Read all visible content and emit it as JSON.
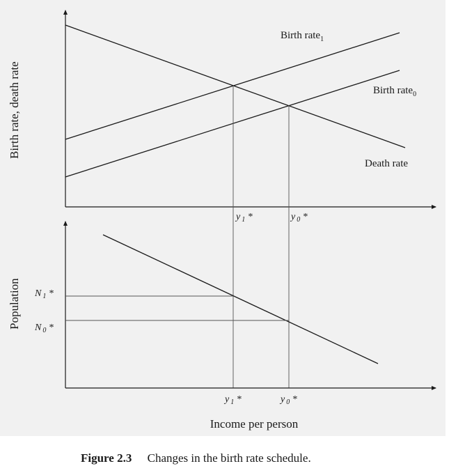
{
  "top_panel": {
    "ylabel": "Birth rate, death rate",
    "curves": {
      "birth_rate_1": {
        "label": "Birth rate",
        "sub": "1"
      },
      "birth_rate_0": {
        "label": "Birth rate",
        "sub": "0"
      },
      "death_rate": {
        "label": "Death rate"
      }
    },
    "ticks": {
      "y1": {
        "main": "y",
        "sub": "1",
        "star": " *"
      },
      "y0": {
        "main": "y",
        "sub": "0",
        "star": " *"
      }
    }
  },
  "bottom_panel": {
    "ylabel": "Population",
    "xlabel": "Income per person",
    "yticks": {
      "N1": {
        "main": "N",
        "sub": "1",
        "star": " *"
      },
      "N0": {
        "main": "N",
        "sub": "0",
        "star": " *"
      }
    },
    "xticks": {
      "y1": {
        "main": "y",
        "sub": "1",
        "star": " *"
      },
      "y0": {
        "main": "y",
        "sub": "0",
        "star": " *"
      }
    }
  },
  "caption": {
    "figure_number": "Figure 2.3",
    "text": "Changes in the birth rate schedule."
  },
  "colors": {
    "line": "#1a1a1a",
    "guide": "#555555",
    "background": "#f1f1f1"
  }
}
